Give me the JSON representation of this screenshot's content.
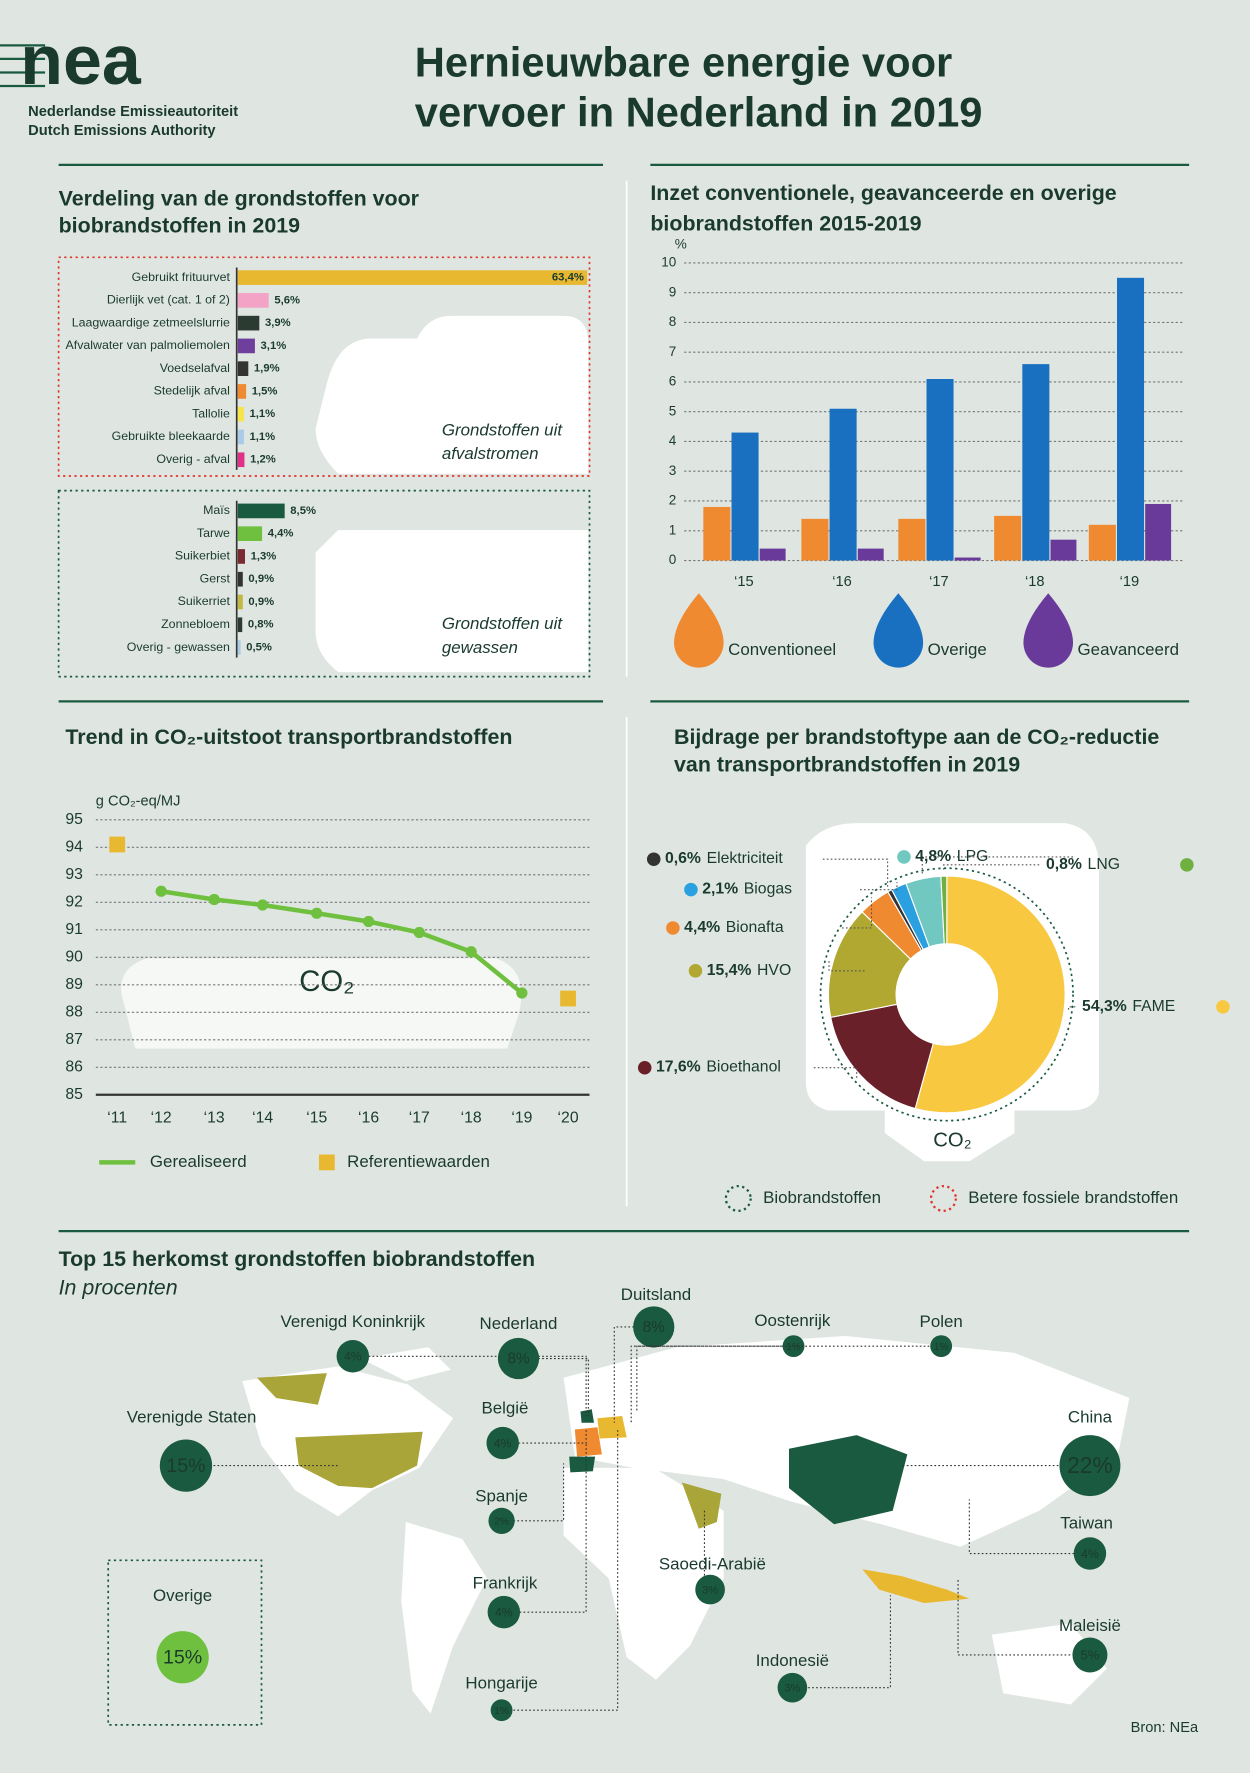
{
  "header": {
    "logo": "nea",
    "org": [
      "Nederlandse Emissieautoriteit",
      "Dutch Emissions Authority"
    ],
    "title": [
      "Hernieuwbare energie voor",
      "vervoer in Nederland in 2019"
    ]
  },
  "chart_data": [
    {
      "type": "hbar",
      "title": [
        "Verdeling van de grondstoffen voor",
        "biobrandstoffen in 2019"
      ],
      "groups": [
        {
          "label": [
            "Grondstoffen uit",
            "afvalstromen"
          ],
          "border_color": "#e0352b",
          "categories": [
            "Gebruikt frituurvet",
            "Dierlijk vet (cat. 1 of 2)",
            "Laagwaardige zetmeelslurrie",
            "Afvalwater van palmoliemolen",
            "Voedselafval",
            "Stedelijk afval",
            "Tallolie",
            "Gebruikte bleekaarde",
            "Overig - afval"
          ],
          "values": [
            63.4,
            5.6,
            3.9,
            3.1,
            1.9,
            1.5,
            1.1,
            1.1,
            1.2
          ],
          "value_labels": [
            "63,4%",
            "5,6%",
            "3,9%",
            "3,1%",
            "1,9%",
            "1,5%",
            "1,1%",
            "1,1%",
            "1,2%"
          ],
          "colors": [
            "#e8b830",
            "#f2a3c6",
            "#2b3b31",
            "#6e3f9c",
            "#333333",
            "#f08a30",
            "#f6e44a",
            "#a9cbe8",
            "#e0308a"
          ]
        },
        {
          "label": [
            "Grondstoffen uit",
            "gewassen"
          ],
          "border_color": "#1a5a40",
          "categories": [
            "Maïs",
            "Tarwe",
            "Suikerbiet",
            "Gerst",
            "Suikerriet",
            "Zonnebloem",
            "Overig - gewassen"
          ],
          "values": [
            8.5,
            4.4,
            1.3,
            0.9,
            0.9,
            0.8,
            0.5
          ],
          "value_labels": [
            "8,5%",
            "4,4%",
            "1,3%",
            "0,9%",
            "0,9%",
            "0,8%",
            "0,5%"
          ],
          "colors": [
            "#1a5a40",
            "#70c040",
            "#7a2a30",
            "#333333",
            "#c0b840",
            "#2b3b31",
            "#a9cbe8"
          ]
        }
      ]
    },
    {
      "type": "bar",
      "title": [
        "Inzet conventionele, geavanceerde en overige",
        "biobrandstoffen 2015-2019"
      ],
      "y_label": "%",
      "categories": [
        "‘15",
        "‘16",
        "‘17",
        "‘18",
        "‘19"
      ],
      "series": [
        {
          "name": "Conventioneel",
          "color": "#f08a30",
          "values": [
            1.8,
            1.4,
            1.4,
            1.5,
            1.2
          ]
        },
        {
          "name": "Overige",
          "color": "#1a70c0",
          "values": [
            4.3,
            5.1,
            6.1,
            6.6,
            9.5
          ]
        },
        {
          "name": "Geavanceerd",
          "color": "#6a3a9a",
          "values": [
            0.4,
            0.4,
            0.1,
            0.7,
            1.9
          ]
        }
      ],
      "ylim": [
        0,
        10
      ],
      "yticks": [
        0,
        1,
        2,
        3,
        4,
        5,
        6,
        7,
        8,
        9,
        10
      ],
      "grid": true
    },
    {
      "type": "line",
      "title": "Trend in CO₂-uitstoot transportbrandstoffen",
      "y_label": "g CO₂-eq/MJ",
      "annotation": "CO₂",
      "categories": [
        "‘11",
        "‘12",
        "‘13",
        "‘14",
        "‘15",
        "‘16",
        "‘17",
        "‘18",
        "‘19",
        "‘20"
      ],
      "series": [
        {
          "name": "Gerealiseerd",
          "color": "#70c040",
          "marker": "line",
          "values": [
            null,
            92.4,
            92.1,
            91.9,
            91.6,
            91.3,
            90.9,
            90.2,
            88.7,
            null
          ]
        },
        {
          "name": "Referentiewaarden",
          "color": "#e8b830",
          "marker": "square",
          "values": [
            94.1,
            null,
            null,
            null,
            null,
            null,
            null,
            null,
            null,
            88.5
          ]
        }
      ],
      "ylim": [
        85,
        95
      ],
      "yticks": [
        85,
        86,
        87,
        88,
        89,
        90,
        91,
        92,
        93,
        94,
        95
      ],
      "grid": true
    },
    {
      "type": "donut",
      "title": [
        "Bijdrage per brandstoftype aan de CO₂-reductie",
        "van transportbrandstoffen in 2019"
      ],
      "annotation": "CO₂",
      "categories": [
        "FAME",
        "Bioethanol",
        "HVO",
        "Bionafta",
        "Elektriciteit",
        "Biogas",
        "LPG",
        "LNG"
      ],
      "values": [
        54.3,
        17.6,
        15.4,
        4.4,
        0.6,
        2.1,
        4.8,
        0.8
      ],
      "value_labels": [
        "54,3%",
        "17,6%",
        "15,4%",
        "4,4%",
        "0,6%",
        "2,1%",
        "4,8%",
        "0,8%"
      ],
      "colors": [
        "#f8c840",
        "#6a2028",
        "#b0a830",
        "#f08a30",
        "#333333",
        "#2aa0e0",
        "#70c8c0",
        "#70b040"
      ],
      "legend": [
        {
          "name": "Biobrandstoffen",
          "color": "#1a5a40"
        },
        {
          "name": "Betere fossiele brandstoffen",
          "color": "#e0352b"
        }
      ]
    },
    {
      "type": "bubble-map",
      "title": "Top 15 herkomst grondstoffen biobrandstoffen",
      "subtitle": "In procenten",
      "categories": [
        "Verenigd Koninkrijk",
        "Nederland",
        "Duitsland",
        "Oostenrijk",
        "Polen",
        "Verenigde Staten",
        "België",
        "China",
        "Spanje",
        "Taiwan",
        "Saoedi-Arabië",
        "Frankrijk",
        "Maleisië",
        "Indonesië",
        "Hongarije",
        "Overige"
      ],
      "values": [
        4,
        8,
        8,
        1,
        1,
        15,
        4,
        22,
        2,
        4,
        3,
        4,
        5,
        3,
        1,
        15
      ],
      "value_labels": [
        "4%",
        "8%",
        "8%",
        "1%",
        "1%",
        "15%",
        "4%",
        "22%",
        "2%",
        "4%",
        "3%",
        "4%",
        "5%",
        "3%",
        "1%",
        "15%"
      ],
      "color": "#1a5a40",
      "other_color": "#70c040",
      "source": "Bron: NEa"
    }
  ]
}
